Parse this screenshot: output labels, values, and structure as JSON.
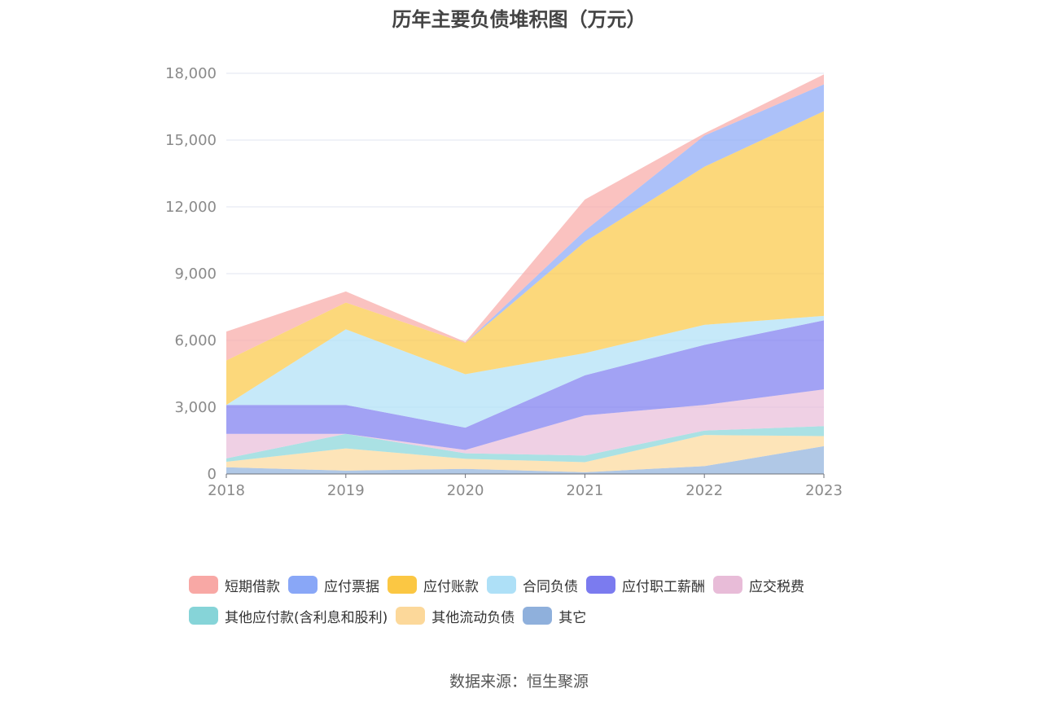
{
  "chart_data": {
    "type": "area",
    "stacked": true,
    "title": "历年主要负债堆积图（万元）",
    "x": [
      "2018",
      "2019",
      "2020",
      "2021",
      "2022",
      "2023"
    ],
    "y_ticks": [
      "0",
      "3,000",
      "6,000",
      "9,000",
      "12,000",
      "15,000",
      "18,000"
    ],
    "ylim": [
      0,
      18000
    ],
    "grid": true,
    "legend_position": "bottom",
    "series": [
      {
        "name": "其它",
        "color": "#8fb0dc",
        "values": [
          300,
          150,
          230,
          80,
          350,
          1250
        ]
      },
      {
        "name": "其他流动负债",
        "color": "#fcd89a",
        "values": [
          250,
          1000,
          450,
          450,
          1400,
          450
        ]
      },
      {
        "name": "其他应付款(含利息和股利)",
        "color": "#86d4d8",
        "values": [
          150,
          650,
          250,
          300,
          200,
          450
        ]
      },
      {
        "name": "应交税费",
        "color": "#e8bcd8",
        "values": [
          1100,
          0,
          150,
          1800,
          1150,
          1650
        ]
      },
      {
        "name": "应付职工薪酬",
        "color": "#7b7bef",
        "values": [
          1300,
          1300,
          1000,
          1800,
          2700,
          3100
        ]
      },
      {
        "name": "合同负债",
        "color": "#aee0f7",
        "values": [
          0,
          3400,
          2400,
          1000,
          900,
          200
        ]
      },
      {
        "name": "应付账款",
        "color": "#fbc743",
        "values": [
          2000,
          1200,
          1400,
          5000,
          7100,
          9200
        ]
      },
      {
        "name": "应付票据",
        "color": "#89a7f7",
        "values": [
          0,
          0,
          0,
          500,
          1400,
          1200
        ]
      },
      {
        "name": "短期借款",
        "color": "#f8a8a5",
        "values": [
          1300,
          500,
          50,
          1400,
          100,
          450
        ]
      }
    ],
    "legend_order": [
      "短期借款",
      "应付票据",
      "应付账款",
      "合同负债",
      "应付职工薪酬",
      "应交税费",
      "其他应付款(含利息和股利)",
      "其他流动负债",
      "其它"
    ]
  },
  "source_text": "数据来源：恒生聚源"
}
